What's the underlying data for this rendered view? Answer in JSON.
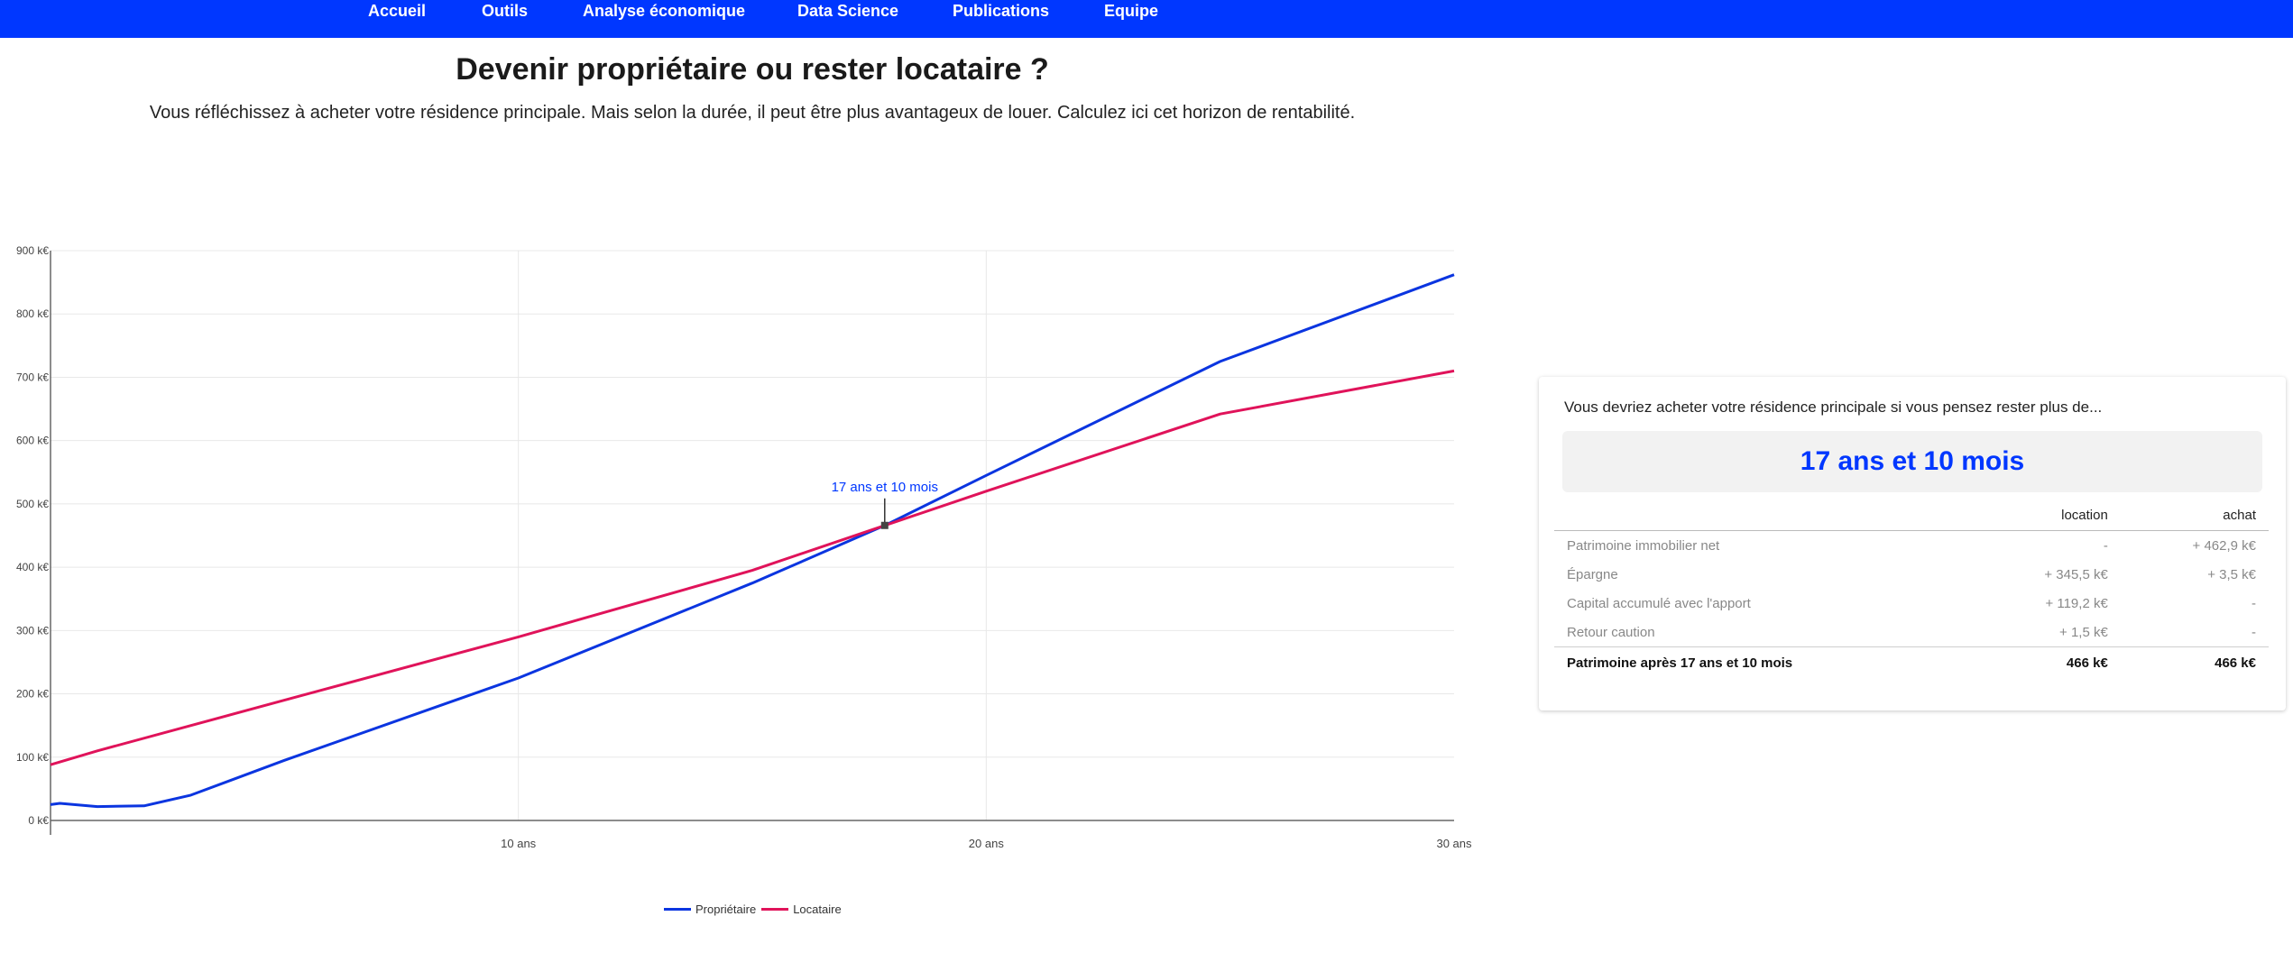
{
  "nav": {
    "items": [
      "Accueil",
      "Outils",
      "Analyse économique",
      "Data Science",
      "Publications",
      "Equipe"
    ]
  },
  "page": {
    "title": "Devenir propriétaire ou rester locataire ?",
    "subtitle": "Vous réfléchissez à acheter votre résidence principale. Mais selon la durée, il peut être plus avantageux de louer. Calculez ici cet horizon de rentabilité."
  },
  "colors": {
    "nav": "#0037ff",
    "proprietaire": "#0b35e0",
    "locataire": "#e0135a",
    "accent": "#0037ff"
  },
  "chart_data": {
    "type": "line",
    "y_tick_labels": [
      "0 k€",
      "100 k€",
      "200 k€",
      "300 k€",
      "400 k€",
      "500 k€",
      "600 k€",
      "700 k€",
      "800 k€",
      "900 k€"
    ],
    "x_tick_labels": [
      "10 ans",
      "20 ans",
      "30 ans"
    ],
    "x_ticks": [
      10,
      20,
      30
    ],
    "y_ticks": [
      0,
      100,
      200,
      300,
      400,
      500,
      600,
      700,
      800,
      900
    ],
    "xlim": [
      0,
      30
    ],
    "ylim": [
      0,
      900
    ],
    "xlabel": "",
    "ylabel": "",
    "grid": true,
    "legend_position": "bottom-center",
    "series": [
      {
        "name": "Propriétaire",
        "x": [
          0,
          0.2,
          1,
          2,
          3,
          5,
          10,
          15,
          17.83,
          20,
          25,
          30
        ],
        "y": [
          25,
          27,
          22,
          23,
          40,
          95,
          225,
          375,
          466,
          545,
          725,
          862
        ]
      },
      {
        "name": "Locataire",
        "x": [
          0,
          1,
          5,
          10,
          15,
          17.83,
          20,
          25,
          30
        ],
        "y": [
          88,
          110,
          190,
          290,
          395,
          466,
          520,
          642,
          710
        ]
      }
    ],
    "annotation": {
      "label": "17 ans et 10 mois",
      "x": 17.83,
      "y": 466
    }
  },
  "panel": {
    "intro": "Vous devriez acheter votre résidence principale si vous pensez rester plus de...",
    "result": "17 ans et 10 mois",
    "columns": [
      "location",
      "achat"
    ],
    "rows": [
      {
        "label": "Patrimoine immobilier net",
        "location": "-",
        "achat": "+ 462,9 k€"
      },
      {
        "label": "Épargne",
        "location": "+ 345,5 k€",
        "achat": "+ 3,5 k€"
      },
      {
        "label": "Capital accumulé avec l'apport",
        "location": "+ 119,2 k€",
        "achat": "-"
      },
      {
        "label": "Retour caution",
        "location": "+ 1,5 k€",
        "achat": "-"
      }
    ],
    "total": {
      "label": "Patrimoine après 17 ans et 10 mois",
      "location": "466 k€",
      "achat": "466 k€"
    }
  }
}
